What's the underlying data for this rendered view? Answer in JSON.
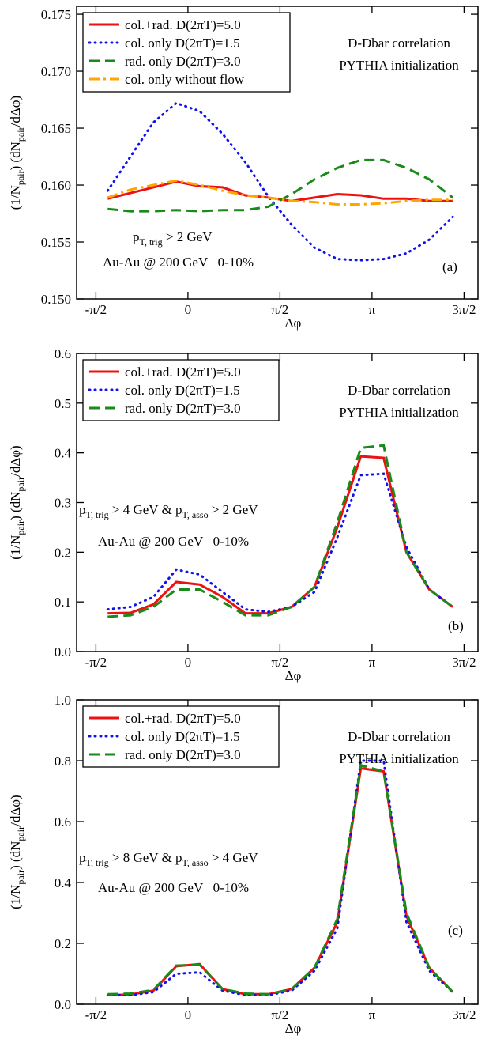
{
  "chart_data": [
    {
      "type": "line",
      "panel_label": "(a)",
      "xlabel": "Δφ",
      "ylabel": [
        "(1/N",
        "pair",
        ") (dN",
        "pair",
        "/dΔφ)"
      ],
      "annotations": [
        "D-Dbar correlation",
        "PYTHIA initialization"
      ],
      "cut": [
        "p",
        "T, trig",
        " > 2 GeV"
      ],
      "system": "Au-Au @ 200 GeV   0-10%",
      "xlim": [
        -1.9,
        4.95
      ],
      "xticks": [
        {
          "value": -1.5708,
          "label": "-π/2"
        },
        0,
        {
          "value": 1.5708,
          "label": "π/2"
        },
        {
          "value": 3.1416,
          "label": "π"
        },
        {
          "value": 4.7124,
          "label": "3π/2"
        }
      ],
      "ylim": [
        0.15,
        0.1757
      ],
      "yticks": [
        {
          "value": 0.15,
          "label": "0.150"
        },
        {
          "value": 0.155,
          "label": "0.155"
        },
        {
          "value": 0.16,
          "label": "0.160"
        },
        {
          "value": 0.165,
          "label": "0.165"
        },
        {
          "value": 0.17,
          "label": "0.170"
        },
        {
          "value": 0.175,
          "label": "0.175"
        }
      ],
      "x": [
        -1.37,
        -0.98,
        -0.59,
        -0.2,
        0.2,
        0.59,
        0.98,
        1.37,
        1.77,
        2.16,
        2.55,
        2.95,
        3.34,
        3.73,
        4.12,
        4.52
      ],
      "series": [
        {
          "name": "col.+rad. D(2πT)=5.0",
          "color": "#ee1111",
          "style": "solid",
          "values": [
            0.1588,
            0.1593,
            0.1598,
            0.1603,
            0.1599,
            0.1598,
            0.1591,
            0.1589,
            0.1586,
            0.1589,
            0.1592,
            0.1591,
            0.1588,
            0.1588,
            0.1586,
            0.1586
          ]
        },
        {
          "name": "col. only D(2πT)=1.5",
          "color": "#1111ee",
          "style": "dotted",
          "values": [
            0.1595,
            0.1625,
            0.1655,
            0.1672,
            0.1665,
            0.1645,
            0.162,
            0.159,
            0.1565,
            0.1545,
            0.1535,
            0.1534,
            0.1535,
            0.154,
            0.1552,
            0.1572
          ]
        },
        {
          "name": "rad. only D(2πT)=3.0",
          "color": "#1a8a1a",
          "style": "dashed",
          "values": [
            0.1579,
            0.1577,
            0.1577,
            0.1578,
            0.1577,
            0.1578,
            0.1578,
            0.1581,
            0.1592,
            0.1605,
            0.1615,
            0.1622,
            0.1622,
            0.1615,
            0.1605,
            0.1589
          ]
        },
        {
          "name": "col. only without flow",
          "color": "#ffa500",
          "style": "dashdot",
          "values": [
            0.1589,
            0.1596,
            0.16,
            0.1604,
            0.16,
            0.1595,
            0.1591,
            0.1589,
            0.1586,
            0.1585,
            0.1583,
            0.1583,
            0.1584,
            0.1586,
            0.1587,
            0.1587
          ]
        }
      ]
    },
    {
      "type": "line",
      "panel_label": "(b)",
      "xlabel": "Δφ",
      "ylabel": [
        "(1/N",
        "pair",
        ") (dN",
        "pair",
        "/dΔφ)"
      ],
      "annotations": [
        "D-Dbar correlation",
        "PYTHIA initialization"
      ],
      "cut": [
        "p",
        "T, trig",
        " > 4 GeV & p",
        "T, asso",
        " > 2 GeV"
      ],
      "system": "Au-Au @ 200 GeV   0-10%",
      "xlim": [
        -1.9,
        4.95
      ],
      "xticks": [
        {
          "value": -1.5708,
          "label": "-π/2"
        },
        0,
        {
          "value": 1.5708,
          "label": "π/2"
        },
        {
          "value": 3.1416,
          "label": "π"
        },
        {
          "value": 4.7124,
          "label": "3π/2"
        }
      ],
      "ylim": [
        0,
        0.6
      ],
      "yticks": [
        {
          "value": 0,
          "label": "0.0"
        },
        0.1,
        0.2,
        0.3,
        0.4,
        0.5,
        0.6
      ],
      "x": [
        -1.37,
        -0.98,
        -0.59,
        -0.2,
        0.2,
        0.59,
        0.98,
        1.37,
        1.77,
        2.16,
        2.55,
        2.95,
        3.34,
        3.73,
        4.12,
        4.52
      ],
      "series": [
        {
          "name": "col.+rad. D(2πT)=5.0",
          "color": "#ee1111",
          "style": "solid",
          "values": [
            0.077,
            0.078,
            0.095,
            0.14,
            0.135,
            0.11,
            0.077,
            0.077,
            0.09,
            0.13,
            0.25,
            0.393,
            0.39,
            0.2,
            0.125,
            0.09
          ]
        },
        {
          "name": "col. only D(2πT)=1.5",
          "color": "#1111ee",
          "style": "dotted",
          "values": [
            0.085,
            0.09,
            0.11,
            0.165,
            0.155,
            0.12,
            0.085,
            0.08,
            0.09,
            0.12,
            0.23,
            0.355,
            0.358,
            0.21,
            0.125,
            0.09
          ]
        },
        {
          "name": "rad. only D(2πT)=3.0",
          "color": "#1a8a1a",
          "style": "dashed",
          "values": [
            0.07,
            0.073,
            0.09,
            0.125,
            0.125,
            0.1,
            0.073,
            0.073,
            0.09,
            0.13,
            0.26,
            0.41,
            0.415,
            0.2,
            0.125,
            0.09
          ]
        }
      ]
    },
    {
      "type": "line",
      "panel_label": "(c)",
      "xlabel": "Δφ",
      "ylabel": [
        "(1/N",
        "pair",
        ") (dN",
        "pair",
        "/dΔφ)"
      ],
      "annotations": [
        "D-Dbar correlation",
        "PYTHIA initialization"
      ],
      "cut": [
        "p",
        "T, trig",
        " > 8 GeV & p",
        "T, asso",
        " > 4 GeV"
      ],
      "system": "Au-Au @ 200 GeV   0-10%",
      "xlim": [
        -1.9,
        4.95
      ],
      "xticks": [
        {
          "value": -1.5708,
          "label": "-π/2"
        },
        0,
        {
          "value": 1.5708,
          "label": "π/2"
        },
        {
          "value": 3.1416,
          "label": "π"
        },
        {
          "value": 4.7124,
          "label": "3π/2"
        }
      ],
      "ylim": [
        0,
        1.0
      ],
      "yticks": [
        {
          "value": 0,
          "label": "0.0"
        },
        0.2,
        0.4,
        0.6,
        0.8,
        {
          "value": 1.0,
          "label": "1.0"
        }
      ],
      "x": [
        -1.37,
        -0.98,
        -0.59,
        -0.2,
        0.2,
        0.59,
        0.98,
        1.37,
        1.77,
        2.16,
        2.55,
        2.95,
        3.34,
        3.73,
        4.12,
        4.52
      ],
      "series": [
        {
          "name": "col.+rad. D(2πT)=5.0",
          "color": "#ee1111",
          "style": "solid",
          "values": [
            0.03,
            0.032,
            0.045,
            0.125,
            0.132,
            0.05,
            0.033,
            0.033,
            0.05,
            0.12,
            0.27,
            0.775,
            0.765,
            0.29,
            0.12,
            0.04
          ]
        },
        {
          "name": "col. only D(2πT)=1.5",
          "color": "#1111ee",
          "style": "dotted",
          "values": [
            0.03,
            0.03,
            0.04,
            0.1,
            0.105,
            0.045,
            0.03,
            0.03,
            0.045,
            0.11,
            0.25,
            0.8,
            0.8,
            0.27,
            0.11,
            0.04
          ]
        },
        {
          "name": "rad. only D(2πT)=3.0",
          "color": "#1a8a1a",
          "style": "dashed",
          "values": [
            0.033,
            0.035,
            0.047,
            0.127,
            0.13,
            0.05,
            0.035,
            0.033,
            0.05,
            0.12,
            0.28,
            0.785,
            0.765,
            0.3,
            0.12,
            0.04
          ]
        }
      ]
    }
  ]
}
